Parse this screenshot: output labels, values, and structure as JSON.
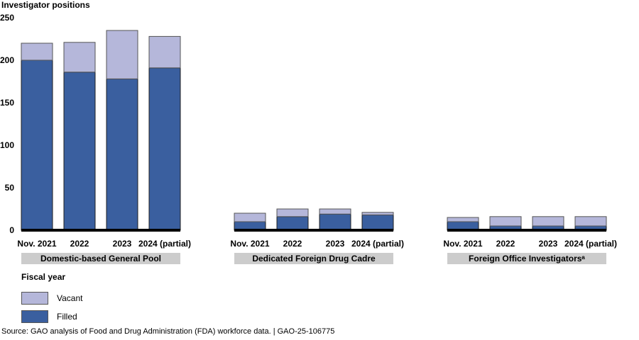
{
  "colors": {
    "filled": "#3a5f9f",
    "vacant": "#b5b7da",
    "group_band": "#cccccc",
    "axis": "#000000"
  },
  "chart_data": {
    "type": "bar",
    "stacked": true,
    "ylabel": "Investigator positions",
    "ylim": [
      0,
      250
    ],
    "yticks": [
      0,
      50,
      100,
      150,
      200,
      250
    ],
    "grid": false,
    "legend": {
      "title": "Fiscal year",
      "placement": "bottom-left",
      "entries": [
        "Vacant",
        "Filled"
      ]
    },
    "groups": [
      {
        "name": "Domestic-based General Pool",
        "categories": [
          "Nov. 2021",
          "2022",
          "2023",
          "2024 (partial)"
        ],
        "series": [
          {
            "name": "Filled",
            "values": [
              200,
              186,
              178,
              191
            ]
          },
          {
            "name": "Vacant",
            "values": [
              20,
              35,
              57,
              37
            ]
          }
        ]
      },
      {
        "name": "Dedicated Foreign Drug Cadre",
        "categories": [
          "Nov. 2021",
          "2022",
          "2023",
          "2024 (partial)"
        ],
        "series": [
          {
            "name": "Filled",
            "values": [
              10,
              16,
              19,
              18
            ]
          },
          {
            "name": "Vacant",
            "values": [
              10,
              9,
              6,
              3
            ]
          }
        ]
      },
      {
        "name": "Foreign Office Investigatorsᵃ",
        "categories": [
          "Nov. 2021",
          "2022",
          "2023",
          "2024 (partial)"
        ],
        "series": [
          {
            "name": "Filled",
            "values": [
              10,
              5,
              5,
              5
            ]
          },
          {
            "name": "Vacant",
            "values": [
              5,
              11,
              11,
              11
            ]
          }
        ]
      }
    ]
  },
  "legend": {
    "title": "Fiscal year",
    "vacant_label": "Vacant",
    "filled_label": "Filled"
  },
  "source": "Source: GAO analysis of Food and Drug Administration (FDA) workforce data.  |  GAO-25-106775"
}
